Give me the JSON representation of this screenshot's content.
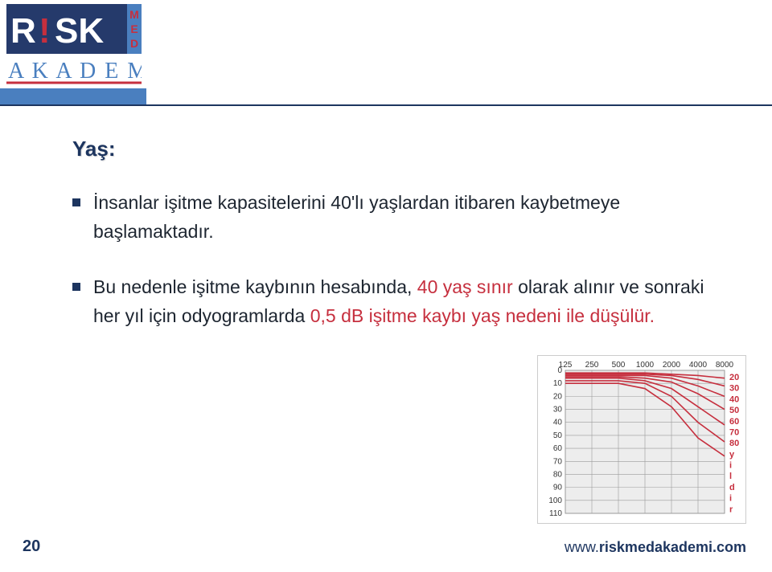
{
  "logo": {
    "main_text": "R",
    "excl": "!",
    "sk": "SK",
    "side": "MED",
    "sub": "A K A D E M İ",
    "main_bg": "#253a6b",
    "blue": "#4a7fbf",
    "red": "#c62f3e",
    "white": "#ffffff"
  },
  "title": "Yaş:",
  "bullets": [
    {
      "runs": [
        {
          "text": "İnsanlar işitme kapasitelerini 40'lı yaşlardan itibaren kaybetmeye başlamaktadır.",
          "hl": false
        }
      ]
    },
    {
      "runs": [
        {
          "text": "Bu nedenle işitme kaybının hesabında, ",
          "hl": false
        },
        {
          "text": "40 yaş sınır ",
          "hl": true
        },
        {
          "text": "olarak alınır ve sonraki her yıl için odyogramlarda ",
          "hl": false
        },
        {
          "text": "0,5 dB işitme kaybı yaş nedeni ile düşülür.",
          "hl": true
        }
      ]
    }
  ],
  "chart": {
    "type": "line",
    "x_ticks": [
      "125",
      "250",
      "500",
      "1000",
      "2000",
      "4000",
      "8000"
    ],
    "y_ticks": [
      "0",
      "10",
      "20",
      "30",
      "40",
      "50",
      "60",
      "70",
      "80",
      "90",
      "100",
      "110"
    ],
    "ylim": [
      0,
      110
    ],
    "right_labels": [
      "20",
      "30",
      "40",
      "50",
      "60",
      "70",
      "80",
      "y",
      "i",
      "l",
      "d",
      "i",
      "r"
    ],
    "right_label_color": "#c62f3e",
    "line_color": "#c62f3e",
    "grid_color": "#9a9a9a",
    "bg_color": "#ededed",
    "series": [
      {
        "age": 20,
        "values": [
          2,
          2,
          2,
          2,
          3,
          4,
          6
        ]
      },
      {
        "age": 30,
        "values": [
          3,
          3,
          3,
          3,
          4,
          7,
          12
        ]
      },
      {
        "age": 40,
        "values": [
          4,
          4,
          4,
          4,
          6,
          12,
          20
        ]
      },
      {
        "age": 50,
        "values": [
          5,
          5,
          5,
          6,
          9,
          18,
          30
        ]
      },
      {
        "age": 60,
        "values": [
          6,
          6,
          6,
          8,
          14,
          28,
          42
        ]
      },
      {
        "age": 70,
        "values": [
          8,
          8,
          8,
          10,
          20,
          40,
          55
        ]
      },
      {
        "age": 80,
        "values": [
          10,
          10,
          10,
          14,
          28,
          52,
          66
        ]
      }
    ],
    "label_fontsize": 10
  },
  "page_number": "20",
  "footer": {
    "www": "www.",
    "domain": "riskmedakademi.com"
  }
}
